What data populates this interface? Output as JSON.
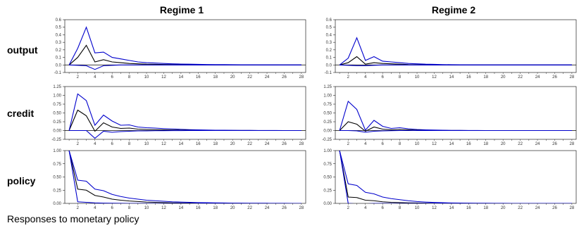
{
  "caption": "Responses to monetary policy",
  "column_titles": [
    "Regime 1",
    "Regime 2"
  ],
  "row_labels": [
    "output",
    "credit",
    "policy"
  ],
  "colors": {
    "response": "#000000",
    "bands": "#0000cc",
    "zero_line": "#000000",
    "frame": "#000000"
  },
  "chart_data": [
    {
      "type": "line",
      "regime": "Regime 1",
      "variable": "output",
      "x": [
        1,
        2,
        3,
        4,
        5,
        6,
        7,
        8,
        9,
        10,
        11,
        12,
        13,
        14,
        15,
        16,
        17,
        18,
        19,
        20,
        21,
        22,
        23,
        24,
        25,
        26,
        27,
        28
      ],
      "ylim": [
        -0.1,
        0.6
      ],
      "yticks": [
        -0.1,
        0.0,
        0.1,
        0.2,
        0.3,
        0.4,
        0.5,
        0.6
      ],
      "ytick_labels": [
        "-0.1",
        "0.0",
        "0.1",
        "0.2",
        "0.3",
        "0.4",
        "0.5",
        "0.6"
      ],
      "xticks": [
        2,
        4,
        6,
        8,
        10,
        12,
        14,
        16,
        18,
        20,
        22,
        24,
        26,
        28
      ],
      "series": [
        {
          "role": "response",
          "values": [
            0,
            0.1,
            0.26,
            0.04,
            0.07,
            0.04,
            0.03,
            0.02,
            0.015,
            0.01,
            0.008,
            0.006,
            0.005,
            0.004,
            0.003,
            0.002,
            0.002,
            0.001,
            0.001,
            0.001,
            0,
            0,
            0,
            0,
            0,
            0,
            0,
            0
          ]
        },
        {
          "role": "upper",
          "values": [
            0,
            0.22,
            0.5,
            0.16,
            0.17,
            0.1,
            0.08,
            0.06,
            0.04,
            0.03,
            0.025,
            0.02,
            0.015,
            0.012,
            0.01,
            0.008,
            0.006,
            0.005,
            0.004,
            0.003,
            0.002,
            0.002,
            0.001,
            0.001,
            0.001,
            0,
            0,
            0
          ]
        },
        {
          "role": "lower",
          "values": [
            0,
            -0.005,
            -0.01,
            -0.06,
            -0.01,
            -0.005,
            0,
            0,
            0,
            0,
            0,
            0,
            0,
            0,
            0,
            0,
            0,
            0,
            0,
            0,
            0,
            0,
            0,
            0,
            0,
            0,
            0,
            0
          ]
        }
      ]
    },
    {
      "type": "line",
      "regime": "Regime 2",
      "variable": "output",
      "x": [
        1,
        2,
        3,
        4,
        5,
        6,
        7,
        8,
        9,
        10,
        11,
        12,
        13,
        14,
        15,
        16,
        17,
        18,
        19,
        20,
        21,
        22,
        23,
        24,
        25,
        26,
        27,
        28
      ],
      "ylim": [
        -0.1,
        0.6
      ],
      "yticks": [
        -0.1,
        0.0,
        0.1,
        0.2,
        0.3,
        0.4,
        0.5,
        0.6
      ],
      "ytick_labels": [
        "-0.1",
        "0.0",
        "0.1",
        "0.2",
        "0.3",
        "0.4",
        "0.5",
        "0.6"
      ],
      "xticks": [
        2,
        4,
        6,
        8,
        10,
        12,
        14,
        16,
        18,
        20,
        22,
        24,
        26,
        28
      ],
      "series": [
        {
          "role": "response",
          "values": [
            0,
            0.03,
            0.11,
            0.01,
            0.03,
            0.02,
            0.015,
            0.01,
            0.005,
            0.003,
            0.002,
            0.001,
            0.001,
            0,
            0,
            0,
            0,
            0,
            0,
            0,
            0,
            0,
            0,
            0,
            0,
            0,
            0,
            0
          ]
        },
        {
          "role": "upper",
          "values": [
            0,
            0.09,
            0.36,
            0.06,
            0.11,
            0.05,
            0.04,
            0.03,
            0.02,
            0.015,
            0.01,
            0.008,
            0.005,
            0.003,
            0.002,
            0.001,
            0.001,
            0,
            0,
            0,
            0,
            0,
            0,
            0,
            0,
            0,
            0,
            0
          ]
        },
        {
          "role": "lower",
          "values": [
            0,
            -0.005,
            -0.01,
            -0.01,
            -0.005,
            0,
            0,
            0,
            0,
            0,
            0,
            0,
            0,
            0,
            0,
            0,
            0,
            0,
            0,
            0,
            0,
            0,
            0,
            0,
            0,
            0,
            0,
            0
          ]
        }
      ]
    },
    {
      "type": "line",
      "regime": "Regime 1",
      "variable": "credit",
      "x": [
        1,
        2,
        3,
        4,
        5,
        6,
        7,
        8,
        9,
        10,
        11,
        12,
        13,
        14,
        15,
        16,
        17,
        18,
        19,
        20,
        21,
        22,
        23,
        24,
        25,
        26,
        27,
        28
      ],
      "ylim": [
        -0.25,
        1.25
      ],
      "yticks": [
        -0.25,
        0.0,
        0.25,
        0.5,
        0.75,
        1.0,
        1.25
      ],
      "ytick_labels": [
        "-0.25",
        "0.00",
        "0.25",
        "0.50",
        "0.75",
        "1.00",
        "1.25"
      ],
      "xticks": [
        2,
        4,
        6,
        8,
        10,
        12,
        14,
        16,
        18,
        20,
        22,
        24,
        26,
        28
      ],
      "series": [
        {
          "role": "response",
          "values": [
            0,
            0.58,
            0.42,
            -0.02,
            0.22,
            0.1,
            0.06,
            0.07,
            0.04,
            0.03,
            0.025,
            0.02,
            0.015,
            0.01,
            0.008,
            0.006,
            0.004,
            0.003,
            0.002,
            0.002,
            0.001,
            0.001,
            0,
            0,
            0,
            0,
            0,
            0
          ]
        },
        {
          "role": "upper",
          "values": [
            0,
            1.04,
            0.85,
            0.15,
            0.44,
            0.27,
            0.15,
            0.16,
            0.1,
            0.08,
            0.07,
            0.055,
            0.045,
            0.035,
            0.025,
            0.02,
            0.015,
            0.01,
            0.008,
            0.006,
            0.004,
            0.003,
            0.002,
            0.001,
            0.001,
            0,
            0,
            0
          ]
        },
        {
          "role": "lower",
          "values": [
            0,
            0,
            0,
            -0.22,
            -0.02,
            -0.05,
            -0.03,
            -0.02,
            -0.01,
            -0.01,
            -0.005,
            -0.003,
            -0.002,
            -0.001,
            0,
            0,
            0,
            0,
            0,
            0,
            0,
            0,
            0,
            0,
            0,
            0,
            0,
            0
          ]
        }
      ]
    },
    {
      "type": "line",
      "regime": "Regime 2",
      "variable": "credit",
      "x": [
        1,
        2,
        3,
        4,
        5,
        6,
        7,
        8,
        9,
        10,
        11,
        12,
        13,
        14,
        15,
        16,
        17,
        18,
        19,
        20,
        21,
        22,
        23,
        24,
        25,
        26,
        27,
        28
      ],
      "ylim": [
        -0.25,
        1.25
      ],
      "yticks": [
        -0.25,
        0.0,
        0.25,
        0.5,
        0.75,
        1.0,
        1.25
      ],
      "ytick_labels": [
        "-0.25",
        "0.00",
        "0.25",
        "0.50",
        "0.75",
        "1.00",
        "1.25"
      ],
      "xticks": [
        2,
        4,
        6,
        8,
        10,
        12,
        14,
        16,
        18,
        20,
        22,
        24,
        26,
        28
      ],
      "series": [
        {
          "role": "response",
          "values": [
            0,
            0.25,
            0.18,
            -0.02,
            0.1,
            0.04,
            0.02,
            0.03,
            0.02,
            0.01,
            0.008,
            0.005,
            0.003,
            0.002,
            0.001,
            0,
            0,
            0,
            0,
            0,
            0,
            0,
            0,
            0,
            0,
            0,
            0,
            0
          ]
        },
        {
          "role": "upper",
          "values": [
            0,
            0.83,
            0.6,
            0.01,
            0.29,
            0.12,
            0.06,
            0.08,
            0.05,
            0.03,
            0.02,
            0.015,
            0.01,
            0.005,
            0.003,
            0.002,
            0.001,
            0,
            0,
            0,
            0,
            0,
            0,
            0,
            0,
            0,
            0,
            0
          ]
        },
        {
          "role": "lower",
          "values": [
            0,
            0,
            -0.01,
            -0.05,
            -0.02,
            -0.01,
            -0.005,
            0,
            0,
            0,
            0,
            0,
            0,
            0,
            0,
            0,
            0,
            0,
            0,
            0,
            0,
            0,
            0,
            0,
            0,
            0,
            0,
            0
          ]
        }
      ]
    },
    {
      "type": "line",
      "regime": "Regime 1",
      "variable": "policy",
      "x": [
        1,
        2,
        3,
        4,
        5,
        6,
        7,
        8,
        9,
        10,
        11,
        12,
        13,
        14,
        15,
        16,
        17,
        18,
        19,
        20,
        21,
        22,
        23,
        24,
        25,
        26,
        27,
        28
      ],
      "ylim": [
        0.0,
        1.0
      ],
      "yticks": [
        0.0,
        0.25,
        0.5,
        0.75,
        1.0
      ],
      "ytick_labels": [
        "0.00",
        "0.25",
        "0.50",
        "0.75",
        "1.00"
      ],
      "xticks": [
        2,
        4,
        6,
        8,
        10,
        12,
        14,
        16,
        18,
        20,
        22,
        24,
        26,
        28
      ],
      "series": [
        {
          "role": "response",
          "values": [
            1.0,
            0.27,
            0.25,
            0.15,
            0.12,
            0.08,
            0.06,
            0.045,
            0.035,
            0.025,
            0.02,
            0.015,
            0.01,
            0.008,
            0.006,
            0.004,
            0.003,
            0.002,
            0.001,
            0.001,
            0,
            0,
            0,
            0,
            0,
            0,
            0,
            0
          ]
        },
        {
          "role": "upper",
          "values": [
            1.0,
            0.44,
            0.42,
            0.27,
            0.24,
            0.17,
            0.13,
            0.1,
            0.08,
            0.06,
            0.05,
            0.04,
            0.03,
            0.025,
            0.02,
            0.015,
            0.012,
            0.009,
            0.007,
            0.005,
            0.004,
            0.003,
            0.002,
            0.002,
            0.001,
            0.001,
            0,
            0
          ]
        },
        {
          "role": "lower",
          "values": [
            1.0,
            0.03,
            0.02,
            0.01,
            0.005,
            0.002,
            0.001,
            0,
            0,
            0,
            0,
            0,
            0,
            0,
            0,
            0,
            0,
            0,
            0,
            0,
            0,
            0,
            0,
            0,
            0,
            0,
            0,
            0
          ]
        }
      ]
    },
    {
      "type": "line",
      "regime": "Regime 2",
      "variable": "policy",
      "x": [
        1,
        2,
        3,
        4,
        5,
        6,
        7,
        8,
        9,
        10,
        11,
        12,
        13,
        14,
        15,
        16,
        17,
        18,
        19,
        20,
        21,
        22,
        23,
        24,
        25,
        26,
        27,
        28
      ],
      "ylim": [
        0.0,
        1.0
      ],
      "yticks": [
        0.0,
        0.25,
        0.5,
        0.75,
        1.0
      ],
      "ytick_labels": [
        "0.00",
        "0.25",
        "0.50",
        "0.75",
        "1.00"
      ],
      "xticks": [
        2,
        4,
        6,
        8,
        10,
        12,
        14,
        16,
        18,
        20,
        22,
        24,
        26,
        28
      ],
      "series": [
        {
          "role": "response",
          "values": [
            1.0,
            0.12,
            0.11,
            0.06,
            0.05,
            0.03,
            0.02,
            0.015,
            0.01,
            0.007,
            0.005,
            0.003,
            0.002,
            0.001,
            0.001,
            0,
            0,
            0,
            0,
            0,
            0,
            0,
            0,
            0,
            0,
            0,
            0,
            0
          ]
        },
        {
          "role": "upper",
          "values": [
            1.0,
            0.37,
            0.34,
            0.21,
            0.18,
            0.12,
            0.09,
            0.07,
            0.05,
            0.035,
            0.025,
            0.018,
            0.012,
            0.008,
            0.006,
            0.004,
            0.003,
            0.002,
            0.001,
            0.001,
            0,
            0,
            0,
            0,
            0,
            0,
            0,
            0
          ]
        },
        {
          "role": "lower",
          "values": [
            1.0,
            0.0,
            -0.01,
            -0.01,
            0,
            0,
            0,
            0,
            0,
            0,
            0,
            0,
            0,
            0,
            0,
            0,
            0,
            0,
            0,
            0,
            0,
            0,
            0,
            0,
            0,
            0,
            0,
            0
          ]
        }
      ]
    }
  ]
}
